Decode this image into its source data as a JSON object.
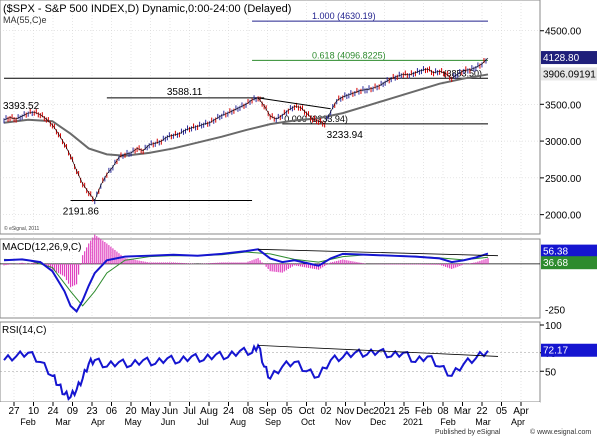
{
  "header": {
    "title": "($SPX - S&P 500 INDEX,D) Dynamic,0:00-24:00 (Delayed)",
    "ma_label": "MA(55,C)e",
    "copyright": "© eSignal, 2011"
  },
  "colors": {
    "price": "#000000",
    "up_bar": "#2b2b9a",
    "down_bar": "#d40000",
    "ma": "#6a6a6a",
    "fib_100": "#23238e",
    "fib_618": "#2e8b2e",
    "flat_line": "#000000",
    "macd_line": "#1515d0",
    "signal_line": "#2e8b2e",
    "histogram": "#e040c0",
    "rsi_line": "#1515d0",
    "grid": "#cccccc",
    "axis_text": "#000000"
  },
  "chart_data": [
    {
      "type": "line",
      "name": "price",
      "title": "$SPX - S&P 500 INDEX, Daily",
      "ylim": [
        1900,
        4850
      ],
      "yticks": [
        2000,
        2500,
        3000,
        3500,
        4500
      ],
      "x_tick_labels": [
        "27",
        "10",
        "24",
        "09",
        "23",
        "06",
        "20",
        "May",
        "Jun",
        "Jul",
        "Aug",
        "24",
        "08",
        "Sep",
        "05",
        "Oct",
        "02",
        "Nov",
        "Dec",
        "2021",
        "25",
        "Feb",
        "08",
        "Mar",
        "22",
        "05",
        "Apr"
      ],
      "x_month_labels": [
        "Feb",
        "Mar",
        "Apr",
        "May",
        "Jun",
        "Jul",
        "Aug",
        "Sep",
        "Oct",
        "Nov",
        "Dec",
        "2021",
        "Feb",
        "Mar",
        "Apr"
      ],
      "price_series": [
        [
          0,
          3290
        ],
        [
          3,
          3320
        ],
        [
          6,
          3300
        ],
        [
          9,
          3340
        ],
        [
          12,
          3380
        ],
        [
          15,
          3393.52
        ],
        [
          18,
          3360
        ],
        [
          21,
          3300
        ],
        [
          24,
          3220
        ],
        [
          27,
          3100
        ],
        [
          30,
          2960
        ],
        [
          33,
          2800
        ],
        [
          36,
          2600
        ],
        [
          39,
          2420
        ],
        [
          42,
          2300
        ],
        [
          45,
          2191.86
        ],
        [
          48,
          2400
        ],
        [
          51,
          2550
        ],
        [
          54,
          2650
        ],
        [
          57,
          2780
        ],
        [
          60,
          2820
        ],
        [
          63,
          2840
        ],
        [
          66,
          2900
        ],
        [
          69,
          2870
        ],
        [
          72,
          2950
        ],
        [
          75,
          2970
        ],
        [
          78,
          3000
        ],
        [
          81,
          3060
        ],
        [
          84,
          3080
        ],
        [
          87,
          3100
        ],
        [
          90,
          3150
        ],
        [
          93,
          3180
        ],
        [
          96,
          3200
        ],
        [
          99,
          3230
        ],
        [
          102,
          3250
        ],
        [
          105,
          3300
        ],
        [
          108,
          3350
        ],
        [
          111,
          3380
        ],
        [
          114,
          3420
        ],
        [
          117,
          3460
        ],
        [
          120,
          3500
        ],
        [
          123,
          3560
        ],
        [
          126,
          3588.11
        ],
        [
          129,
          3480
        ],
        [
          132,
          3340
        ],
        [
          135,
          3300
        ],
        [
          138,
          3350
        ],
        [
          141,
          3420
        ],
        [
          144,
          3470
        ],
        [
          147,
          3460
        ],
        [
          150,
          3380
        ],
        [
          153,
          3300
        ],
        [
          156,
          3270
        ],
        [
          159,
          3233.94
        ],
        [
          162,
          3400
        ],
        [
          165,
          3550
        ],
        [
          168,
          3600
        ],
        [
          171,
          3630
        ],
        [
          174,
          3660
        ],
        [
          177,
          3690
        ],
        [
          180,
          3700
        ],
        [
          183,
          3720
        ],
        [
          186,
          3750
        ],
        [
          189,
          3800
        ],
        [
          192,
          3850
        ],
        [
          195,
          3880
        ],
        [
          198,
          3910
        ],
        [
          201,
          3900
        ],
        [
          204,
          3930
        ],
        [
          207,
          3960
        ],
        [
          210,
          3980
        ],
        [
          213,
          3930
        ],
        [
          216,
          3950
        ],
        [
          219,
          3920
        ],
        [
          222,
          3853.5
        ],
        [
          225,
          3910
        ],
        [
          228,
          3960
        ],
        [
          231,
          3970
        ],
        [
          234,
          4000
        ],
        [
          237,
          4050
        ],
        [
          240,
          4128.8
        ]
      ],
      "ma_series": [
        [
          0,
          3250
        ],
        [
          12,
          3290
        ],
        [
          24,
          3270
        ],
        [
          33,
          3100
        ],
        [
          42,
          2900
        ],
        [
          51,
          2820
        ],
        [
          60,
          2800
        ],
        [
          72,
          2840
        ],
        [
          84,
          2900
        ],
        [
          96,
          2980
        ],
        [
          108,
          3060
        ],
        [
          120,
          3150
        ],
        [
          132,
          3230
        ],
        [
          144,
          3280
        ],
        [
          156,
          3310
        ],
        [
          168,
          3380
        ],
        [
          180,
          3480
        ],
        [
          192,
          3580
        ],
        [
          204,
          3680
        ],
        [
          216,
          3780
        ],
        [
          228,
          3850
        ],
        [
          240,
          3906.09
        ]
      ],
      "levels": [
        {
          "name": "fib-100",
          "label": "1.000 (4630.19)",
          "value": 4630.19,
          "x_start": 123,
          "x_end": 240
        },
        {
          "name": "fib-618",
          "label": "0.618 (4096.8225)",
          "value": 4096.8225,
          "x_start": 123,
          "x_end": 240
        },
        {
          "name": "support-3853",
          "label": "(3853.50)",
          "value": 3853.5,
          "x_start": 0,
          "x_end": 240
        },
        {
          "name": "level-3588",
          "label": "3588.11",
          "value": 3588.11,
          "x_start": 51,
          "x_end": 129
        },
        {
          "name": "level-3233-fib",
          "label": "0.000 (3233.94)",
          "value": 3233.94,
          "x_start": 138,
          "x_end": 240
        },
        {
          "name": "level-2191",
          "label": "2191.86",
          "value": 2191.86,
          "x_start": 33,
          "x_end": 123
        }
      ],
      "annotations": [
        {
          "name": "high-3393",
          "text": "3393.52"
        },
        {
          "name": "high-3588",
          "text": "3588.11"
        },
        {
          "name": "low-2191",
          "text": "2191.86"
        },
        {
          "name": "low-3233",
          "text": "3233.94"
        }
      ],
      "trendline": {
        "from": [
          126,
          3588.11
        ],
        "to": [
          162,
          3440
        ]
      },
      "last_price_label": "4128.80",
      "ma_value_label": "3906.09191"
    },
    {
      "type": "line",
      "name": "macd",
      "title": "MACD(12,26,9,C)",
      "ylim": [
        -280,
        120
      ],
      "yticks": [
        -250
      ],
      "macd_series": [
        [
          0,
          20
        ],
        [
          9,
          25
        ],
        [
          18,
          10
        ],
        [
          24,
          -40
        ],
        [
          30,
          -150
        ],
        [
          33,
          -230
        ],
        [
          36,
          -260
        ],
        [
          39,
          -200
        ],
        [
          42,
          -120
        ],
        [
          45,
          -50
        ],
        [
          51,
          20
        ],
        [
          60,
          40
        ],
        [
          72,
          45
        ],
        [
          84,
          50
        ],
        [
          96,
          45
        ],
        [
          108,
          55
        ],
        [
          120,
          70
        ],
        [
          126,
          80
        ],
        [
          132,
          30
        ],
        [
          138,
          10
        ],
        [
          144,
          20
        ],
        [
          150,
          5
        ],
        [
          156,
          -10
        ],
        [
          162,
          30
        ],
        [
          168,
          55
        ],
        [
          180,
          50
        ],
        [
          192,
          45
        ],
        [
          204,
          40
        ],
        [
          216,
          30
        ],
        [
          222,
          10
        ],
        [
          228,
          20
        ],
        [
          234,
          35
        ],
        [
          240,
          56.38
        ]
      ],
      "signal_series": [
        [
          0,
          25
        ],
        [
          12,
          20
        ],
        [
          24,
          -20
        ],
        [
          33,
          -150
        ],
        [
          39,
          -230
        ],
        [
          45,
          -150
        ],
        [
          51,
          -50
        ],
        [
          60,
          20
        ],
        [
          72,
          40
        ],
        [
          84,
          45
        ],
        [
          96,
          45
        ],
        [
          108,
          50
        ],
        [
          120,
          65
        ],
        [
          132,
          55
        ],
        [
          144,
          25
        ],
        [
          156,
          10
        ],
        [
          168,
          40
        ],
        [
          180,
          50
        ],
        [
          192,
          47
        ],
        [
          204,
          42
        ],
        [
          216,
          33
        ],
        [
          228,
          22
        ],
        [
          240,
          36.68
        ]
      ],
      "trendline": {
        "from": [
          126,
          80
        ],
        "to": [
          240,
          45
        ]
      },
      "macd_value_label": "56.38",
      "signal_value_label": "36.68"
    },
    {
      "type": "line",
      "name": "rsi",
      "title": "RSI(14,C)",
      "ylim": [
        20,
        100
      ],
      "yticks": [
        50,
        70,
        100
      ],
      "rsi_series": [
        [
          0,
          62
        ],
        [
          6,
          66
        ],
        [
          12,
          70
        ],
        [
          18,
          60
        ],
        [
          24,
          45
        ],
        [
          27,
          35
        ],
        [
          30,
          25
        ],
        [
          33,
          22
        ],
        [
          36,
          30
        ],
        [
          39,
          42
        ],
        [
          42,
          58
        ],
        [
          45,
          62
        ],
        [
          51,
          55
        ],
        [
          57,
          60
        ],
        [
          63,
          56
        ],
        [
          69,
          62
        ],
        [
          75,
          58
        ],
        [
          81,
          64
        ],
        [
          87,
          60
        ],
        [
          93,
          66
        ],
        [
          99,
          62
        ],
        [
          105,
          68
        ],
        [
          111,
          65
        ],
        [
          117,
          72
        ],
        [
          123,
          70
        ],
        [
          126,
          78
        ],
        [
          129,
          55
        ],
        [
          132,
          42
        ],
        [
          138,
          55
        ],
        [
          144,
          60
        ],
        [
          150,
          50
        ],
        [
          156,
          44
        ],
        [
          162,
          62
        ],
        [
          168,
          65
        ],
        [
          174,
          70
        ],
        [
          180,
          68
        ],
        [
          186,
          72
        ],
        [
          192,
          66
        ],
        [
          198,
          70
        ],
        [
          204,
          60
        ],
        [
          210,
          66
        ],
        [
          216,
          55
        ],
        [
          222,
          45
        ],
        [
          228,
          58
        ],
        [
          234,
          64
        ],
        [
          240,
          72.17
        ]
      ],
      "trendline": {
        "from": [
          126,
          78
        ],
        "to": [
          240,
          66
        ]
      },
      "rsi_value_label": "72.17"
    }
  ],
  "footer": {
    "published": "Published by eSignal",
    "website": "© www.esignal.com"
  }
}
